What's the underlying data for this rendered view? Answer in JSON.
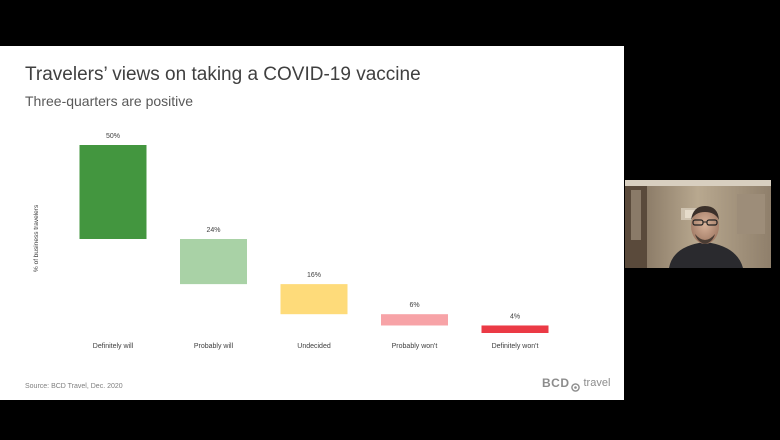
{
  "slide": {
    "title": "Travelers’ views on taking a COVID-19 vaccine",
    "subtitle": "Three-quarters are positive",
    "source": "Source: BCD Travel, Dec. 2020",
    "brand": {
      "name": "BCD",
      "suffix": "travel"
    }
  },
  "chart_data": {
    "type": "bar",
    "subtype": "waterfall",
    "ylabel": "% of business travelers",
    "categories": [
      "Definitely will",
      "Probably will",
      "Undecided",
      "Probably won't",
      "Definitely won't"
    ],
    "values": [
      50,
      24,
      16,
      6,
      4
    ],
    "data_labels": [
      "50%",
      "24%",
      "16%",
      "6%",
      "4%"
    ],
    "colors": [
      "#43963f",
      "#a9d2a6",
      "#fedb7a",
      "#f7a3a7",
      "#eb3a45"
    ],
    "ylim": [
      0,
      100
    ],
    "grid": false,
    "legend": "none"
  },
  "webcam": {
    "participant": "presenter-video"
  },
  "colors": {
    "background": "#000000",
    "slide": "#ffffff",
    "title": "#404040",
    "subtitle": "#595959",
    "muted": "#7f7f7f"
  }
}
